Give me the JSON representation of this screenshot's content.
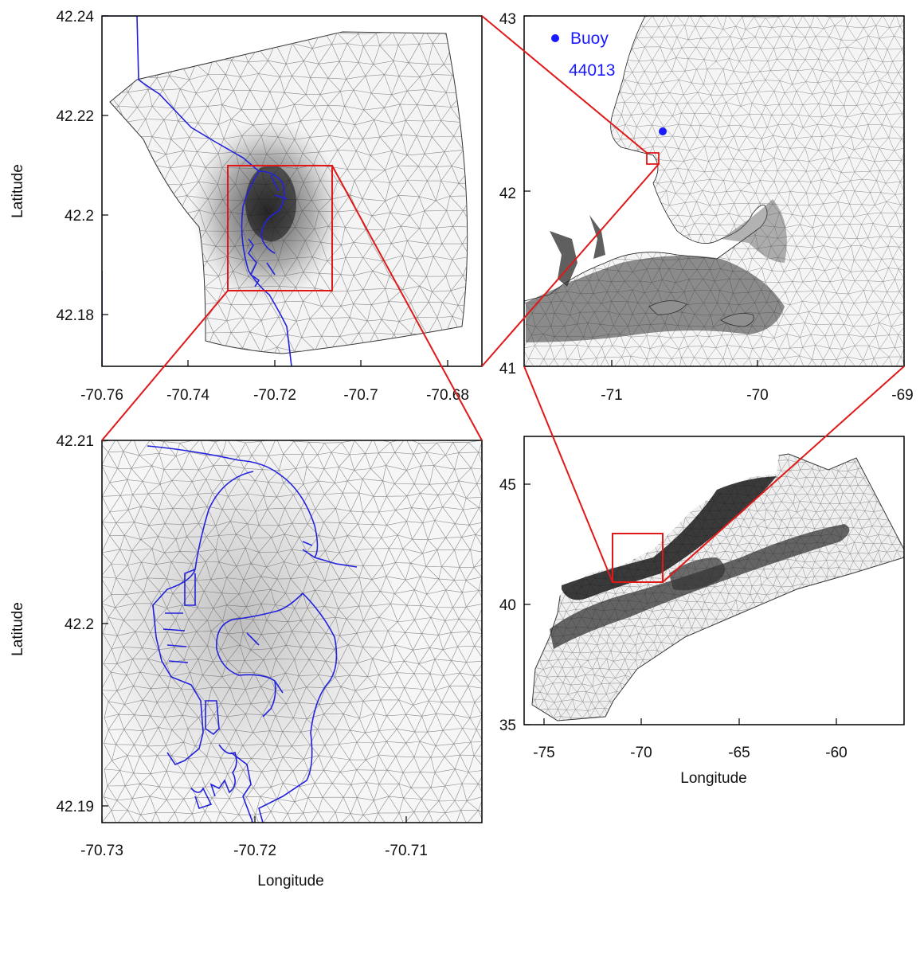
{
  "figure": {
    "colors": {
      "mesh": "#3a3a3a",
      "mesh_light": "#8a8a8a",
      "coastline": "#2222dd",
      "zoom_box": "#e01818",
      "buoy": "#1a1aff",
      "frame": "#000000"
    },
    "buoy": {
      "name_line1": "Buoy",
      "name_line2": "44013",
      "lon": -70.65,
      "lat": 42.35
    }
  },
  "chart_data": [
    {
      "id": "panel-a",
      "type": "map",
      "content": "unstructured triangular mesh with coastline",
      "ylabel": "Latitude",
      "xlabel": "",
      "xlim": [
        -70.76,
        -70.672
      ],
      "ylim": [
        42.17,
        42.24
      ],
      "xticks": [
        "-70.76",
        "-70.74",
        "-70.72",
        "-70.7",
        "-70.68"
      ],
      "xtick_values": [
        -70.76,
        -70.74,
        -70.72,
        -70.7,
        -70.68
      ],
      "yticks": [
        "42.24",
        "42.22",
        "42.2",
        "42.18"
      ],
      "ytick_values": [
        42.24,
        42.22,
        42.2,
        42.18
      ],
      "zoom_box": {
        "lon": [
          -70.73,
          -70.705
        ],
        "lat": [
          42.184,
          42.21
        ]
      }
    },
    {
      "id": "panel-b",
      "type": "map",
      "content": "unstructured triangular mesh, Massachusetts Bay and Cape Cod",
      "ylabel": "",
      "xlabel": "",
      "xlim": [
        -71.6,
        -69
      ],
      "ylim": [
        41,
        43
      ],
      "xticks": [
        "-71",
        "-70",
        "-69"
      ],
      "xtick_values": [
        -71,
        -70,
        -69
      ],
      "yticks": [
        "43",
        "42",
        "41"
      ],
      "ytick_values": [
        43,
        42,
        41
      ],
      "zoom_box": {
        "lon": [
          -70.76,
          -70.672
        ],
        "lat": [
          42.17,
          42.24
        ]
      }
    },
    {
      "id": "panel-c",
      "type": "map",
      "content": "unstructured triangular mesh with coastline (detail)",
      "ylabel": "Latitude",
      "xlabel": "Longitude",
      "xlim": [
        -70.73,
        -70.705
      ],
      "ylim": [
        42.1855,
        42.21
      ],
      "xticks": [
        "-70.73",
        "-70.72",
        "-70.71"
      ],
      "xtick_values": [
        -70.73,
        -70.72,
        -70.71
      ],
      "yticks": [
        "42.21",
        "42.2",
        "42.19"
      ],
      "ytick_values": [
        42.21,
        42.2,
        42.19
      ],
      "zoom_box": null
    },
    {
      "id": "panel-d",
      "type": "map",
      "content": "unstructured triangular mesh, Northwest Atlantic domain",
      "ylabel": "",
      "xlabel": "Longitude",
      "xlim": [
        -76,
        -56.5
      ],
      "ylim": [
        35,
        47
      ],
      "xticks": [
        "-75",
        "-70",
        "-65",
        "-60"
      ],
      "xtick_values": [
        -75,
        -70,
        -65,
        -60
      ],
      "yticks": [
        "45",
        "40",
        "35"
      ],
      "ytick_values": [
        45,
        40,
        35
      ],
      "zoom_box": {
        "lon": [
          -71.6,
          -69
        ],
        "lat": [
          41,
          43
        ]
      }
    }
  ]
}
